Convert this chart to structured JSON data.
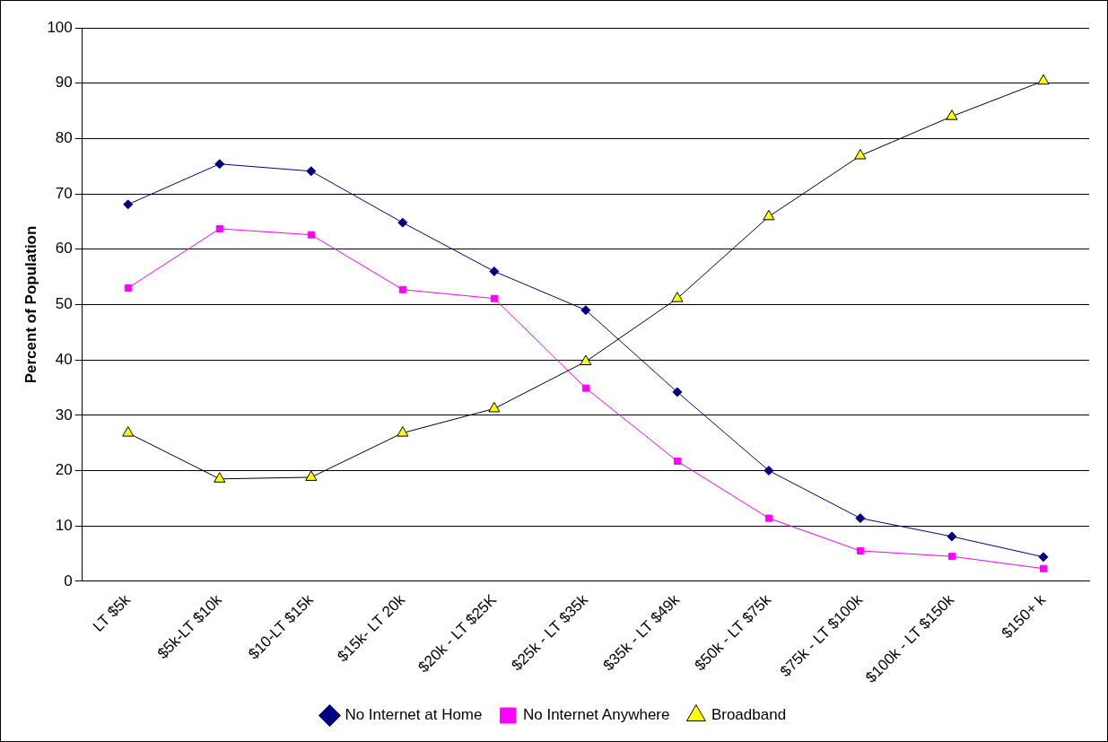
{
  "chart_data": {
    "type": "line",
    "ylabel": "Percent of Population",
    "categories": [
      "LT $5k",
      "$5k-LT $10k",
      "$10-LT $15k",
      "$15k- LT 20k",
      "$20k - LT $25K",
      "$25k - LT $35k",
      "$35k - LT $49k",
      "$50k - LT $75k",
      "$75k - LT $100k",
      "$100k - LT $150k",
      "$150+ k"
    ],
    "series": [
      {
        "name": "No Internet at Home",
        "color": "#000080",
        "marker": "diamond",
        "values": [
          68.1,
          75.4,
          74.1,
          64.8,
          56.0,
          49.0,
          34.2,
          20.0,
          11.4,
          8.1,
          4.4
        ]
      },
      {
        "name": "No Internet Anywhere",
        "color": "#ff00ff",
        "marker": "square",
        "values": [
          53.0,
          63.7,
          62.6,
          52.7,
          51.1,
          34.9,
          21.7,
          11.4,
          5.5,
          4.5,
          2.3
        ]
      },
      {
        "name": "Broadband",
        "color": "#ffff00",
        "marker": "triangle",
        "values": [
          26.8,
          18.5,
          18.8,
          26.8,
          31.2,
          39.7,
          51.1,
          65.9,
          76.9,
          84.0,
          90.4
        ]
      }
    ],
    "ylim": [
      0,
      100
    ],
    "yticks": [
      0,
      10,
      20,
      30,
      40,
      50,
      60,
      70,
      80,
      90,
      100
    ],
    "grid": "y",
    "legend": "bottom"
  }
}
